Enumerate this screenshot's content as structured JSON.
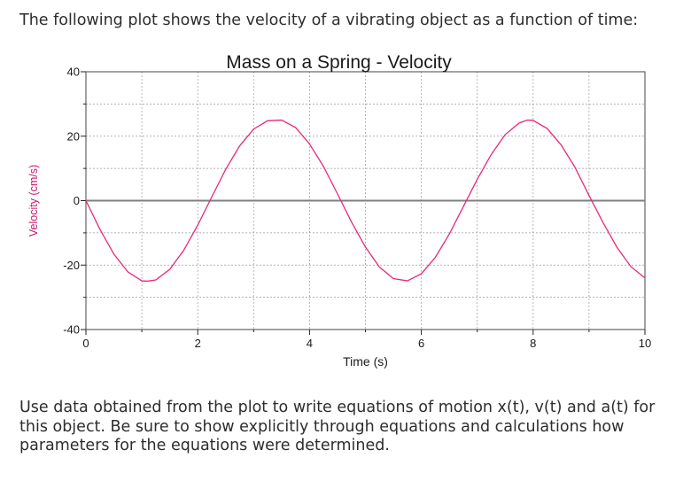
{
  "prompt": {
    "intro": "The following plot shows the velocity of a vibrating object as a function of time:",
    "question": "Use data obtained from the plot to write equations of motion x(t), v(t) and a(t) for this object. Be sure to show explicitly through equations and calculations how parameters for the equations were determined."
  },
  "chart_data": {
    "type": "line",
    "title": "Mass on a Spring - Velocity",
    "xlabel": "Time (s)",
    "ylabel": "Velocity (cm/s)",
    "xlim": [
      0,
      10
    ],
    "ylim": [
      -40,
      40
    ],
    "x_ticks": [
      0,
      2,
      4,
      6,
      8,
      10
    ],
    "y_ticks": [
      40,
      20,
      0,
      -20,
      -40
    ],
    "grid": true,
    "colors": {
      "series": "#e8287a",
      "axis_line": "#7f7f7f",
      "grid": "#9a9a9a",
      "ylabel": "#c8166e"
    },
    "series": [
      {
        "x": [
          0,
          0.25,
          0.5,
          0.75,
          1.0,
          1.1,
          1.25,
          1.5,
          1.75,
          2.0,
          2.25,
          2.5,
          2.75,
          3.0,
          3.25,
          3.5,
          3.75,
          4.0,
          4.25,
          4.5,
          4.75,
          5.0,
          5.25,
          5.5,
          5.75,
          6.0,
          6.25,
          6.5,
          6.75,
          7.0,
          7.25,
          7.5,
          7.75,
          7.9,
          8.0,
          8.25,
          8.5,
          8.75,
          9.0,
          9.25,
          9.5,
          9.75,
          10.0
        ],
        "values": [
          0,
          -8.9,
          -16.6,
          -22.1,
          -24.9,
          -25.0,
          -24.6,
          -21.3,
          -15.4,
          -7.6,
          1.1,
          9.7,
          17.0,
          22.2,
          24.8,
          25.0,
          22.7,
          17.6,
          10.6,
          2.1,
          -6.6,
          -14.4,
          -20.6,
          -24.2,
          -24.9,
          -22.7,
          -17.6,
          -10.4,
          -1.9,
          6.6,
          14.3,
          20.5,
          24.1,
          25.0,
          24.9,
          22.4,
          17.3,
          10.3,
          1.6,
          -6.8,
          -14.5,
          -20.5,
          -24.0
        ]
      }
    ]
  }
}
